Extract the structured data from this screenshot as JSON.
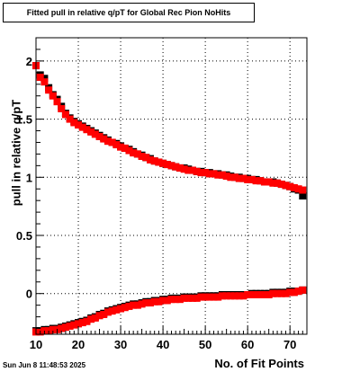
{
  "chart_data": {
    "type": "scatter",
    "title": "Fitted pull in relative q/pT for Global Rec Pion NoHits",
    "xlabel": "No. of Fit Points",
    "ylabel": "pull in relative q/pT",
    "xlim": [
      10,
      74
    ],
    "ylim": [
      -0.35,
      2.2
    ],
    "xticks": [
      "10",
      "20",
      "30",
      "40",
      "50",
      "60",
      "70"
    ],
    "yticks": [
      "0",
      "0.5",
      "1",
      "1.5",
      "2"
    ],
    "grid": true,
    "series": [
      {
        "color": "#000000",
        "marker": "square",
        "x": [
          10,
          11,
          12,
          13,
          14,
          15,
          16,
          17,
          18,
          19,
          20,
          21,
          22,
          23,
          24,
          25,
          26,
          27,
          28,
          29,
          30,
          31,
          32,
          33,
          34,
          35,
          36,
          37,
          38,
          39,
          40,
          41,
          42,
          43,
          44,
          45,
          46,
          47,
          48,
          49,
          50,
          51,
          52,
          53,
          54,
          55,
          56,
          57,
          58,
          59,
          60,
          61,
          62,
          63,
          64,
          65,
          66,
          67,
          68,
          69,
          70,
          71,
          72,
          73
        ],
        "y": [
          1.96,
          1.88,
          1.85,
          1.77,
          1.71,
          1.67,
          1.61,
          1.55,
          1.51,
          1.48,
          1.46,
          1.44,
          1.42,
          1.4,
          1.38,
          1.36,
          1.34,
          1.32,
          1.3,
          1.29,
          1.27,
          1.25,
          1.24,
          1.22,
          1.2,
          1.19,
          1.17,
          1.16,
          1.14,
          1.13,
          1.12,
          1.11,
          1.1,
          1.09,
          1.08,
          1.08,
          1.07,
          1.06,
          1.05,
          1.05,
          1.04,
          1.04,
          1.03,
          1.03,
          1.02,
          1.02,
          1.01,
          1.0,
          1.0,
          0.99,
          0.99,
          0.98,
          0.98,
          0.97,
          0.96,
          0.96,
          0.96,
          0.95,
          0.94,
          0.93,
          0.92,
          0.9,
          0.89,
          0.84
        ]
      },
      {
        "color": "#ff0000",
        "marker": "square",
        "x": [
          10,
          11,
          12,
          13,
          14,
          15,
          16,
          17,
          18,
          19,
          20,
          21,
          22,
          23,
          24,
          25,
          26,
          27,
          28,
          29,
          30,
          31,
          32,
          33,
          34,
          35,
          36,
          37,
          38,
          39,
          40,
          41,
          42,
          43,
          44,
          45,
          46,
          47,
          48,
          49,
          50,
          51,
          52,
          53,
          54,
          55,
          56,
          57,
          58,
          59,
          60,
          61,
          62,
          63,
          64,
          65,
          66,
          67,
          68,
          69,
          70,
          71,
          72,
          73
        ],
        "y": [
          1.96,
          1.86,
          1.82,
          1.75,
          1.7,
          1.65,
          1.59,
          1.54,
          1.5,
          1.47,
          1.45,
          1.43,
          1.41,
          1.39,
          1.37,
          1.35,
          1.33,
          1.31,
          1.3,
          1.28,
          1.26,
          1.25,
          1.23,
          1.21,
          1.2,
          1.18,
          1.17,
          1.15,
          1.14,
          1.13,
          1.12,
          1.11,
          1.1,
          1.09,
          1.08,
          1.07,
          1.06,
          1.06,
          1.05,
          1.04,
          1.04,
          1.03,
          1.03,
          1.02,
          1.02,
          1.01,
          1.0,
          1.0,
          0.99,
          0.99,
          0.98,
          0.98,
          0.97,
          0.97,
          0.96,
          0.96,
          0.95,
          0.95,
          0.94,
          0.93,
          0.92,
          0.91,
          0.9,
          0.89
        ]
      },
      {
        "color": "#000000",
        "marker": "square",
        "x": [
          10,
          11,
          12,
          13,
          14,
          15,
          16,
          17,
          18,
          19,
          20,
          21,
          22,
          23,
          24,
          25,
          26,
          27,
          28,
          29,
          30,
          31,
          32,
          33,
          34,
          35,
          36,
          37,
          38,
          39,
          40,
          41,
          42,
          43,
          44,
          45,
          46,
          47,
          48,
          49,
          50,
          51,
          52,
          53,
          54,
          55,
          56,
          57,
          58,
          59,
          60,
          61,
          62,
          63,
          64,
          65,
          66,
          67,
          68,
          69,
          70,
          71,
          72,
          73
        ],
        "y": [
          -0.32,
          -0.32,
          -0.31,
          -0.31,
          -0.3,
          -0.3,
          -0.29,
          -0.28,
          -0.27,
          -0.26,
          -0.25,
          -0.24,
          -0.23,
          -0.21,
          -0.2,
          -0.18,
          -0.17,
          -0.15,
          -0.14,
          -0.13,
          -0.12,
          -0.11,
          -0.1,
          -0.09,
          -0.09,
          -0.08,
          -0.07,
          -0.07,
          -0.06,
          -0.06,
          -0.05,
          -0.05,
          -0.04,
          -0.04,
          -0.04,
          -0.03,
          -0.03,
          -0.03,
          -0.03,
          -0.02,
          -0.02,
          -0.02,
          -0.02,
          -0.02,
          -0.01,
          -0.01,
          -0.01,
          -0.01,
          -0.01,
          -0.01,
          -0.01,
          0.0,
          0.0,
          0.0,
          0.0,
          0.0,
          0.01,
          0.01,
          0.01,
          0.01,
          0.02,
          0.02,
          0.02,
          0.03
        ]
      },
      {
        "color": "#ff0000",
        "marker": "square",
        "x": [
          10,
          11,
          12,
          13,
          14,
          15,
          16,
          17,
          18,
          19,
          20,
          21,
          22,
          23,
          24,
          25,
          26,
          27,
          28,
          29,
          30,
          31,
          32,
          33,
          34,
          35,
          36,
          37,
          38,
          39,
          40,
          41,
          42,
          43,
          44,
          45,
          46,
          47,
          48,
          49,
          50,
          51,
          52,
          53,
          54,
          55,
          56,
          57,
          58,
          59,
          60,
          61,
          62,
          63,
          64,
          65,
          66,
          67,
          68,
          69,
          70,
          71,
          72,
          73
        ],
        "y": [
          -0.33,
          -0.33,
          -0.32,
          -0.32,
          -0.31,
          -0.31,
          -0.3,
          -0.29,
          -0.28,
          -0.27,
          -0.26,
          -0.25,
          -0.24,
          -0.22,
          -0.21,
          -0.19,
          -0.18,
          -0.16,
          -0.15,
          -0.14,
          -0.13,
          -0.12,
          -0.11,
          -0.1,
          -0.1,
          -0.09,
          -0.08,
          -0.08,
          -0.07,
          -0.07,
          -0.06,
          -0.06,
          -0.05,
          -0.05,
          -0.05,
          -0.04,
          -0.04,
          -0.04,
          -0.04,
          -0.03,
          -0.03,
          -0.03,
          -0.03,
          -0.03,
          -0.02,
          -0.02,
          -0.02,
          -0.02,
          -0.02,
          -0.02,
          -0.01,
          -0.01,
          -0.01,
          -0.01,
          -0.01,
          -0.01,
          0.0,
          0.0,
          0.0,
          0.0,
          0.01,
          0.01,
          0.02,
          0.03
        ]
      }
    ]
  },
  "timestamp": "Sun Jun  8 11:48:53 2025"
}
